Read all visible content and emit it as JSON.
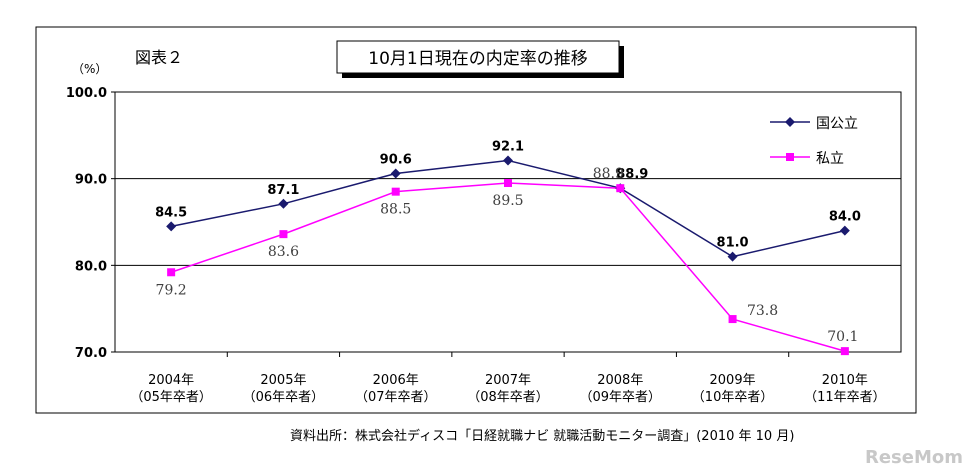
{
  "figure_label": "図表２",
  "source_note": "資料出所：株式会社ディスコ「日経就職ナビ 就職活動モニター調査」(2010 年 10 月)",
  "watermark": "ReseMom",
  "colors": {
    "national_public": "#1a1a6e",
    "private": "#ff00ff",
    "frame": "#000000",
    "grid": "#000000"
  },
  "chart_data": {
    "type": "line",
    "title": "10月1日現在の内定率の推移",
    "ylabel": "（%）",
    "xlabel": "",
    "ylim": [
      70,
      100
    ],
    "yticks": [
      "100.0",
      "90.0",
      "80.0",
      "70.0"
    ],
    "ytick_values": [
      100,
      90,
      80,
      70
    ],
    "grid": "horizontal",
    "legend_position": "top-right",
    "categories": [
      {
        "year": "2004年",
        "cohort": "（05年卒者）"
      },
      {
        "year": "2005年",
        "cohort": "（06年卒者）"
      },
      {
        "year": "2006年",
        "cohort": "（07年卒者）"
      },
      {
        "year": "2007年",
        "cohort": "（08年卒者）"
      },
      {
        "year": "2008年",
        "cohort": "（09年卒者）"
      },
      {
        "year": "2009年",
        "cohort": "（10年卒者）"
      },
      {
        "year": "2010年",
        "cohort": "（11年卒者）"
      }
    ],
    "series": [
      {
        "name": "国公立",
        "marker": "diamond",
        "color": "#1a1a6e",
        "values": [
          84.5,
          87.1,
          90.6,
          92.1,
          88.9,
          81.0,
          84.0
        ],
        "labels": [
          "84.5",
          "87.1",
          "90.6",
          "92.1",
          "88.9",
          "81.0",
          "84.0"
        ]
      },
      {
        "name": "私立",
        "marker": "square",
        "color": "#ff00ff",
        "values": [
          79.2,
          83.6,
          88.5,
          89.5,
          88.9,
          73.8,
          70.1
        ],
        "labels": [
          "79.2",
          "83.6",
          "88.5",
          "89.5",
          "88.9",
          "73.8",
          "70.1"
        ]
      }
    ]
  }
}
